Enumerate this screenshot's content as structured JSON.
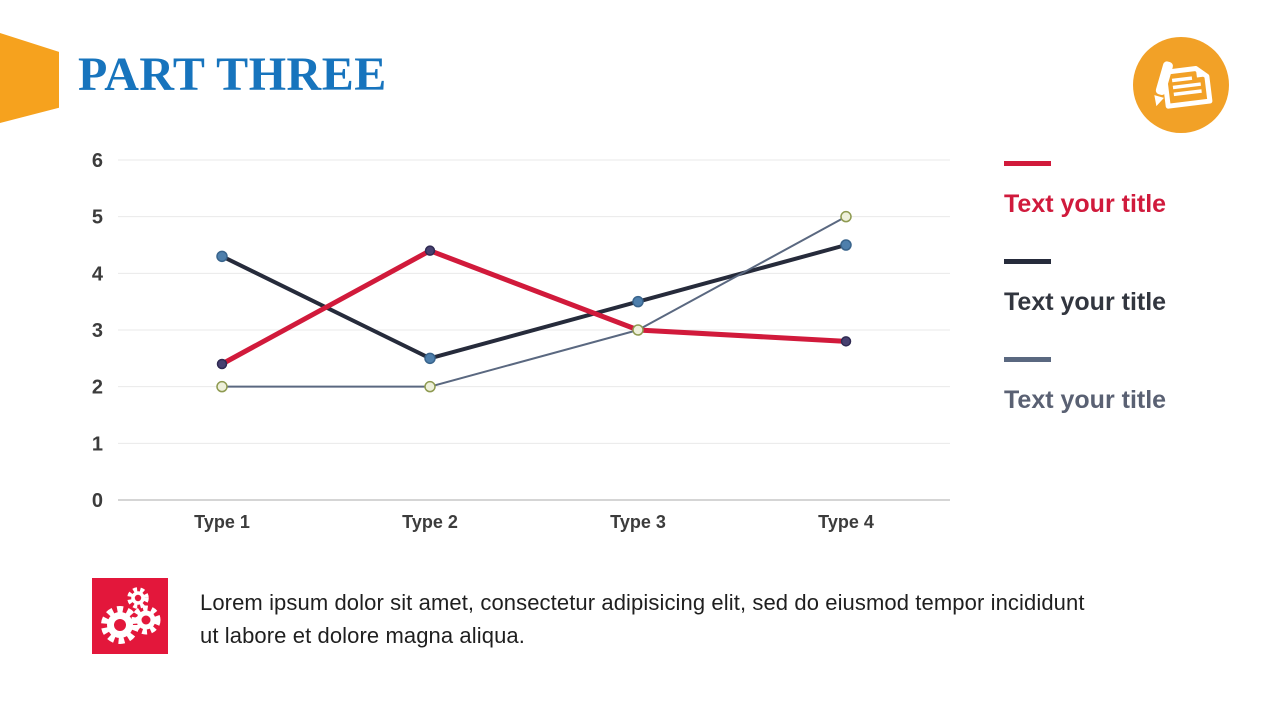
{
  "slide": {
    "title": "PART THREE",
    "title_color": "#1774BD",
    "accent_orange": "#F6A21E"
  },
  "header_icon": {
    "name": "document-pen-icon",
    "background": "#F2A127",
    "glyph_color": "#FFFFFF"
  },
  "chart_data": {
    "type": "line",
    "title": "",
    "categories": [
      "Type 1",
      "Type 2",
      "Type 3",
      "Type 4"
    ],
    "series": [
      {
        "name": "Text your title",
        "line_color": "#262B3B",
        "line_width": 4,
        "marker_fill": "#4E7FAC",
        "marker_stroke": "#39648C",
        "marker_radius": 5,
        "values": [
          4.3,
          2.5,
          3.5,
          4.5
        ]
      },
      {
        "name": "Text your title",
        "line_color": "#5A6880",
        "line_width": 2,
        "marker_fill": "#EEF0DB",
        "marker_stroke": "#8E9A50",
        "marker_radius": 5,
        "values": [
          2.0,
          2.0,
          3.0,
          5.0
        ]
      },
      {
        "name": "Text your title",
        "line_color": "#D11A3B",
        "line_width": 5,
        "marker_fill": "#474070",
        "marker_stroke": "#2F2A52",
        "marker_radius": 4.5,
        "values": [
          2.4,
          4.4,
          3.0,
          2.8
        ]
      }
    ],
    "ylim": [
      0,
      6
    ],
    "yticks": [
      0,
      1,
      2,
      3,
      4,
      5,
      6
    ],
    "grid": true,
    "axis_label_color": "#3C3C3C",
    "grid_color": "#E9E9E9",
    "baseline_color": "#C7C7C7",
    "legend_position": "right"
  },
  "legend": {
    "items": [
      {
        "label": "Text your title",
        "line_color": "#D11A3B",
        "text_color": "#D01A3C"
      },
      {
        "label": "Text your title",
        "line_color": "#262B3B",
        "text_color": "#32363F"
      },
      {
        "label": "Text your title",
        "line_color": "#5A6880",
        "text_color": "#5A6173"
      }
    ]
  },
  "footer": {
    "icon": "gears-icon",
    "icon_background": "#E3173B",
    "lines": [
      "Lorem ipsum dolor sit amet, consectetur adipisicing elit, sed do eiusmod tempor incididunt",
      "ut labore et dolore magna aliqua."
    ]
  }
}
